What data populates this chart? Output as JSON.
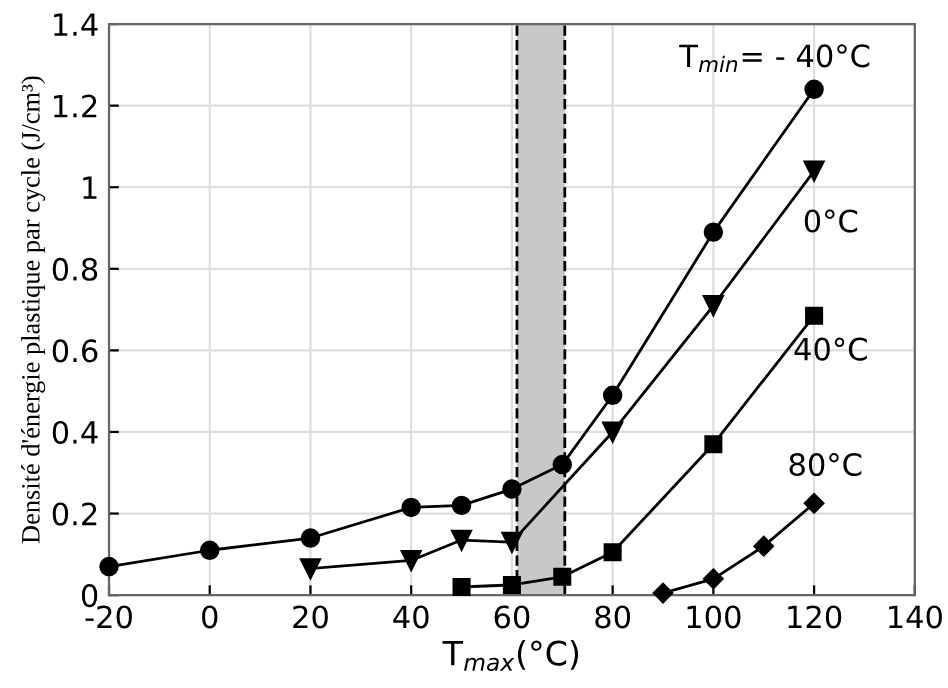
{
  "chart_data": {
    "type": "line",
    "xlabel": "T$_{max}$(°C)",
    "ylabel": "Densité d'énergie plastique par cycle (J/cm³)",
    "xlim": [
      -20,
      140
    ],
    "ylim": [
      0,
      1.4
    ],
    "xticks": [
      -20,
      0,
      20,
      40,
      60,
      80,
      100,
      120,
      140
    ],
    "yticks": [
      0,
      0.2,
      0.4,
      0.6,
      0.8,
      1,
      1.2,
      1.4
    ],
    "grid": true,
    "series": [
      {
        "name": "T$_{min}$= - 40°C",
        "color": "#000000",
        "marker": "circle",
        "x": [
          -20,
          0,
          20,
          40,
          50,
          60,
          70,
          80,
          100,
          120
        ],
        "values": [
          0.07,
          0.11,
          0.14,
          0.215,
          0.22,
          0.26,
          0.32,
          0.49,
          0.89,
          1.24
        ]
      },
      {
        "name": "0°C",
        "color": "#000000",
        "marker": "triangle",
        "x": [
          20,
          40,
          50,
          60,
          80,
          100,
          120
        ],
        "values": [
          0.065,
          0.085,
          0.135,
          0.13,
          0.4,
          0.71,
          1.04
        ]
      },
      {
        "name": "40°C",
        "color": "#000000",
        "marker": "square",
        "x": [
          50,
          60,
          70,
          80,
          100,
          120
        ],
        "values": [
          0.02,
          0.025,
          0.045,
          0.105,
          0.37,
          0.685
        ]
      },
      {
        "name": "80°C",
        "color": "#000000",
        "marker": "diamond",
        "x": [
          90,
          100,
          110,
          120
        ],
        "values": [
          0.005,
          0.04,
          0.12,
          0.225
        ]
      }
    ],
    "bands": [
      {
        "axis": "x",
        "from": 61,
        "to": 70.5,
        "color": "#c8c8c8"
      }
    ],
    "ref_lines": [
      {
        "axis": "x",
        "value": 61,
        "color": "#000000",
        "line_style": "dashed"
      },
      {
        "axis": "x",
        "value": 70.5,
        "color": "#000000",
        "line_style": "dashed"
      }
    ]
  }
}
